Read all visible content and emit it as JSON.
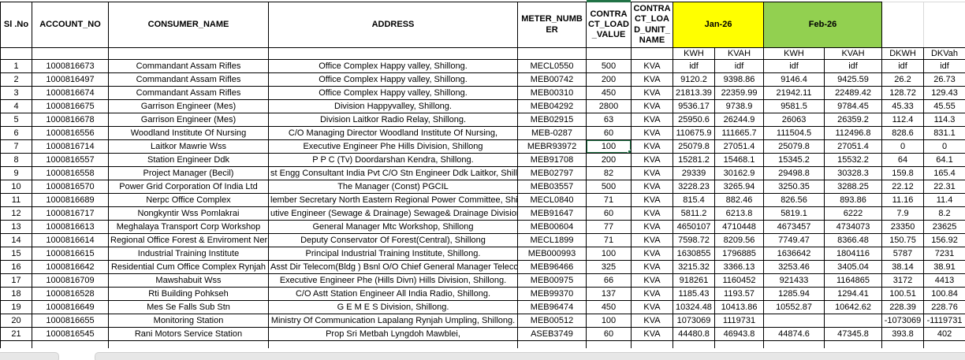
{
  "table": {
    "columns": [
      "Sl .No",
      "ACCOUNT_NO",
      "CONSUMER_NAME",
      "ADDRESS",
      "METER_NUMBER",
      "CONTRACT_LOAD_VALUE",
      "CONTRACT_LOAD_UNIT_NAME"
    ],
    "month_groups": [
      {
        "label": "Jan-26",
        "color": "#FFFF00"
      },
      {
        "label": "Feb-26",
        "color": "#92D050"
      }
    ],
    "subheaders": [
      "KWH",
      "KVAH",
      "KWH",
      "KVAH",
      "DKWH",
      "DKVah"
    ],
    "column_keys": [
      "sl-no",
      "account-no",
      "consumer-name",
      "address",
      "meter-number",
      "contract-load-value",
      "contract-load-unit",
      "jan-kwh",
      "jan-kvah",
      "feb-kwh",
      "feb-kvah",
      "dkwh",
      "dkvah"
    ],
    "rows": [
      [
        "1",
        "1000816673",
        "Commandant Assam Rifles",
        "Office Complex Happy valley, Shillong.",
        "MECL0550",
        "500",
        "KVA",
        "idf",
        "idf",
        "idf",
        "idf",
        "idf",
        "idf"
      ],
      [
        "2",
        "1000816497",
        "Commandant Assam Rifles",
        "Office Complex Happy valley, Shillong.",
        "MEB00742",
        "200",
        "KVA",
        "9120.2",
        "9398.86",
        "9146.4",
        "9425.59",
        "26.2",
        "26.73"
      ],
      [
        "3",
        "1000816674",
        "Commandant Assam Rifles",
        "Office Complex Happy valley, Shillong.",
        "MEB00310",
        "450",
        "KVA",
        "21813.39",
        "22359.99",
        "21942.11",
        "22489.42",
        "128.72",
        "129.43"
      ],
      [
        "4",
        "1000816675",
        "Garrison Engineer (Mes)",
        "Division Happyvalley, Shillong.",
        "MEB04292",
        "2800",
        "KVA",
        "9536.17",
        "9738.9",
        "9581.5",
        "9784.45",
        "45.33",
        "45.55"
      ],
      [
        "5",
        "1000816678",
        "Garrison Engineer (Mes)",
        "Division Laitkor Radio Relay, Shillong.",
        "MEB02915",
        "63",
        "KVA",
        "25950.6",
        "26244.9",
        "26063",
        "26359.2",
        "112.4",
        "114.3"
      ],
      [
        "6",
        "1000816556",
        "Woodland Institute Of Nursing",
        "C/O Managing Director Woodland Institute Of Nursing,",
        "MEB-0287",
        "60",
        "KVA",
        "110675.9",
        "111665.7",
        "111504.5",
        "112496.8",
        "828.6",
        "831.1"
      ],
      [
        "7",
        "1000816714",
        "Laitkor Mawrie Wss",
        "Executive Engineer Phe Hills Division, Shillong",
        "MEBR93972",
        "100",
        "KVA",
        "25079.8",
        "27051.4",
        "25079.8",
        "27051.4",
        "0",
        "0"
      ],
      [
        "8",
        "1000816557",
        "Station Engineer Ddk",
        "P P C (Tv) Doordarshan Kendra, Shillong.",
        "MEB91708",
        "200",
        "KVA",
        "15281.2",
        "15468.1",
        "15345.2",
        "15532.2",
        "64",
        "64.1"
      ],
      [
        "9",
        "1000816558",
        "Project Manager (Becil)",
        "st Engg Consultant India Pvt C/O Stn Engineer Ddk Laitkor, Shillong. #",
        "MEB02797",
        "82",
        "KVA",
        "29339",
        "30162.9",
        "29498.8",
        "30328.3",
        "159.8",
        "165.4"
      ],
      [
        "10",
        "1000816570",
        "Power Grid Corporation Of India Ltd",
        "The Manager (Const) PGCIL",
        "MEB03557",
        "500",
        "KVA",
        "3228.23",
        "3265.94",
        "3250.35",
        "3288.25",
        "22.12",
        "22.31"
      ],
      [
        "11",
        "1000816689",
        "Nerpc Office Complex",
        "lember Secretary North Eastern Regional Power Committee, Shillong",
        "MECL0840",
        "71",
        "KVA",
        "815.4",
        "882.46",
        "826.56",
        "893.86",
        "11.16",
        "11.4"
      ],
      [
        "12",
        "1000816717",
        "Nongkyntir Wss Pomlakrai",
        "utive Engineer (Sewage & Drainage) Sewage& Drainage Division, Shi",
        "MEB91647",
        "60",
        "KVA",
        "5811.2",
        "6213.8",
        "5819.1",
        "6222",
        "7.9",
        "8.2"
      ],
      [
        "13",
        "1000816613",
        "Meghalaya Transport Corp Workshop",
        "General Manager Mtc Workshop, Shillong",
        "MEB00604",
        "77",
        "KVA",
        "4650107",
        "4710448",
        "4673457",
        "4734073",
        "23350",
        "23625"
      ],
      [
        "14",
        "1000816614",
        "Regional Office Forest & Enviroment Ner",
        "Deputy Conservator Of Forest(Central), Shillong",
        "MECL1899",
        "71",
        "KVA",
        "7598.72",
        "8209.56",
        "7749.47",
        "8366.48",
        "150.75",
        "156.92"
      ],
      [
        "15",
        "1000816615",
        "Industrial Training Institute",
        "Principal Industrial Training Institute, Shillong.",
        "MEB000993",
        "100",
        "KVA",
        "1630855",
        "1796885",
        "1636642",
        "1804116",
        "5787",
        "7231"
      ],
      [
        "16",
        "1000816642",
        "Residential Cum Office Complex Rynjah",
        "Asst Dir Telecom(Bldg ) Bsnl O/O Chief General Manager Telecom",
        "MEB96466",
        "325",
        "KVA",
        "3215.32",
        "3366.13",
        "3253.46",
        "3405.04",
        "38.14",
        "38.91"
      ],
      [
        "17",
        "1000816709",
        "Mawshabuit  Wss",
        "Executive Engineer Phe (Hills Divn) Hills Division, Shillong.",
        "MEB00975",
        "66",
        "KVA",
        "918261",
        "1160452",
        "921433",
        "1164865",
        "3172",
        "4413"
      ],
      [
        "18",
        "1000816528",
        "Rti Building Pohkseh",
        "C/O Astt Station Engineer All India Radio, Shillong.",
        "MEB99370",
        "137",
        "KVA",
        "1185.43",
        "1193.57",
        "1285.94",
        "1294.41",
        "100.51",
        "100.84"
      ],
      [
        "19",
        "1000816649",
        "Mes Se Falls Sub Stn",
        "G E M E S Division, Shillong.",
        "MEB96474",
        "450",
        "KVA",
        "10324.48",
        "10413.86",
        "10552.87",
        "10642.62",
        "228.39",
        "228.76"
      ],
      [
        "20",
        "1000816655",
        "Monitoring Station",
        "Ministry Of Communication Lapalang Rynjah Umpling, Shillong.",
        "MEB00512",
        "100",
        "KVA",
        "1073069",
        "1119731",
        "",
        "",
        "-1073069",
        "-1119731"
      ],
      [
        "21",
        "1000816545",
        "Rani Motors Service Station",
        "Prop Sri Metbah Lyngdoh Mawblei,",
        "ASEB3749",
        "60",
        "KVA",
        "44480.8",
        "46943.8",
        "44874.6",
        "47345.8",
        "393.8",
        "402"
      ]
    ]
  },
  "selection": {
    "row_index": 6,
    "col_index": 5,
    "value": "100",
    "border_color": "#217346"
  },
  "colors": {
    "jan_header": "#FFFF00",
    "feb_header": "#92D050",
    "grid_border": "#000000",
    "selection_green": "#217346"
  }
}
